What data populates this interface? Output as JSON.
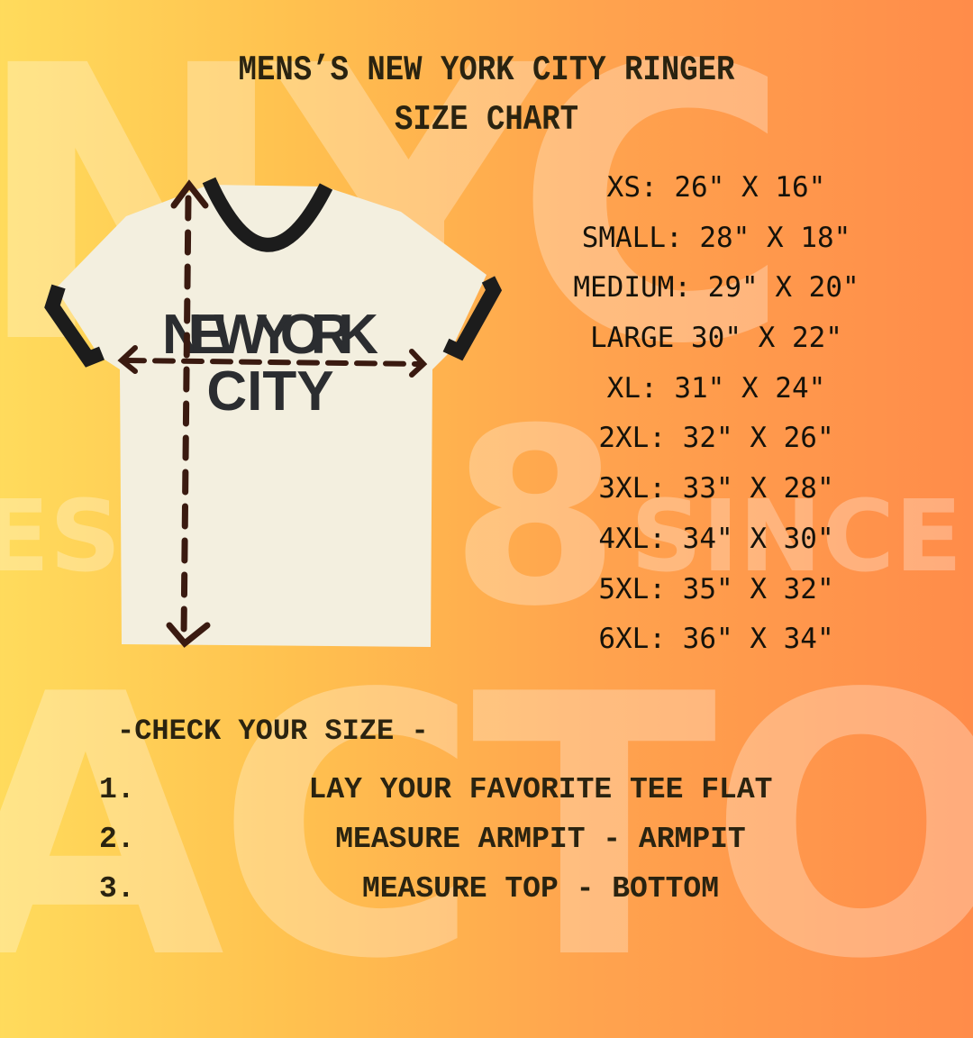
{
  "watermark": {
    "top": "NYC",
    "middle_left": "ES",
    "middle_digit": "8",
    "middle_right": "SINCE",
    "bottom": "ACTOR"
  },
  "header": {
    "title_line1": "MENS’S NEW YORK CITY RINGER",
    "title_line2": "SIZE CHART"
  },
  "shirt": {
    "print_line1": "NEW YORK",
    "print_line2": "CITY",
    "body_color": "#f3efdf",
    "trim_color": "#1c1c1c",
    "arrow_color": "#3a1a10"
  },
  "sizes": [
    "XS: 26\" X 16\"",
    "SMALL: 28\" X 18\"",
    "MEDIUM: 29\" X 20\"",
    "LARGE 30\" X 22\"",
    "XL: 31\" X 24\"",
    "2XL: 32\" X 26\"",
    "3XL: 33\" X 28\"",
    "4XL: 34\" X 30\"",
    "5XL: 35\" X 32\"",
    "6XL: 36\" X 34\""
  ],
  "instructions": {
    "heading": "-CHECK YOUR SIZE -",
    "steps": [
      {
        "num": "1.",
        "text": "LAY YOUR FAVORITE TEE FLAT"
      },
      {
        "num": "2.",
        "text": "MEASURE ARMPIT - ARMPIT"
      },
      {
        "num": "3.",
        "text": "MEASURE TOP - BOTTOM"
      }
    ]
  }
}
